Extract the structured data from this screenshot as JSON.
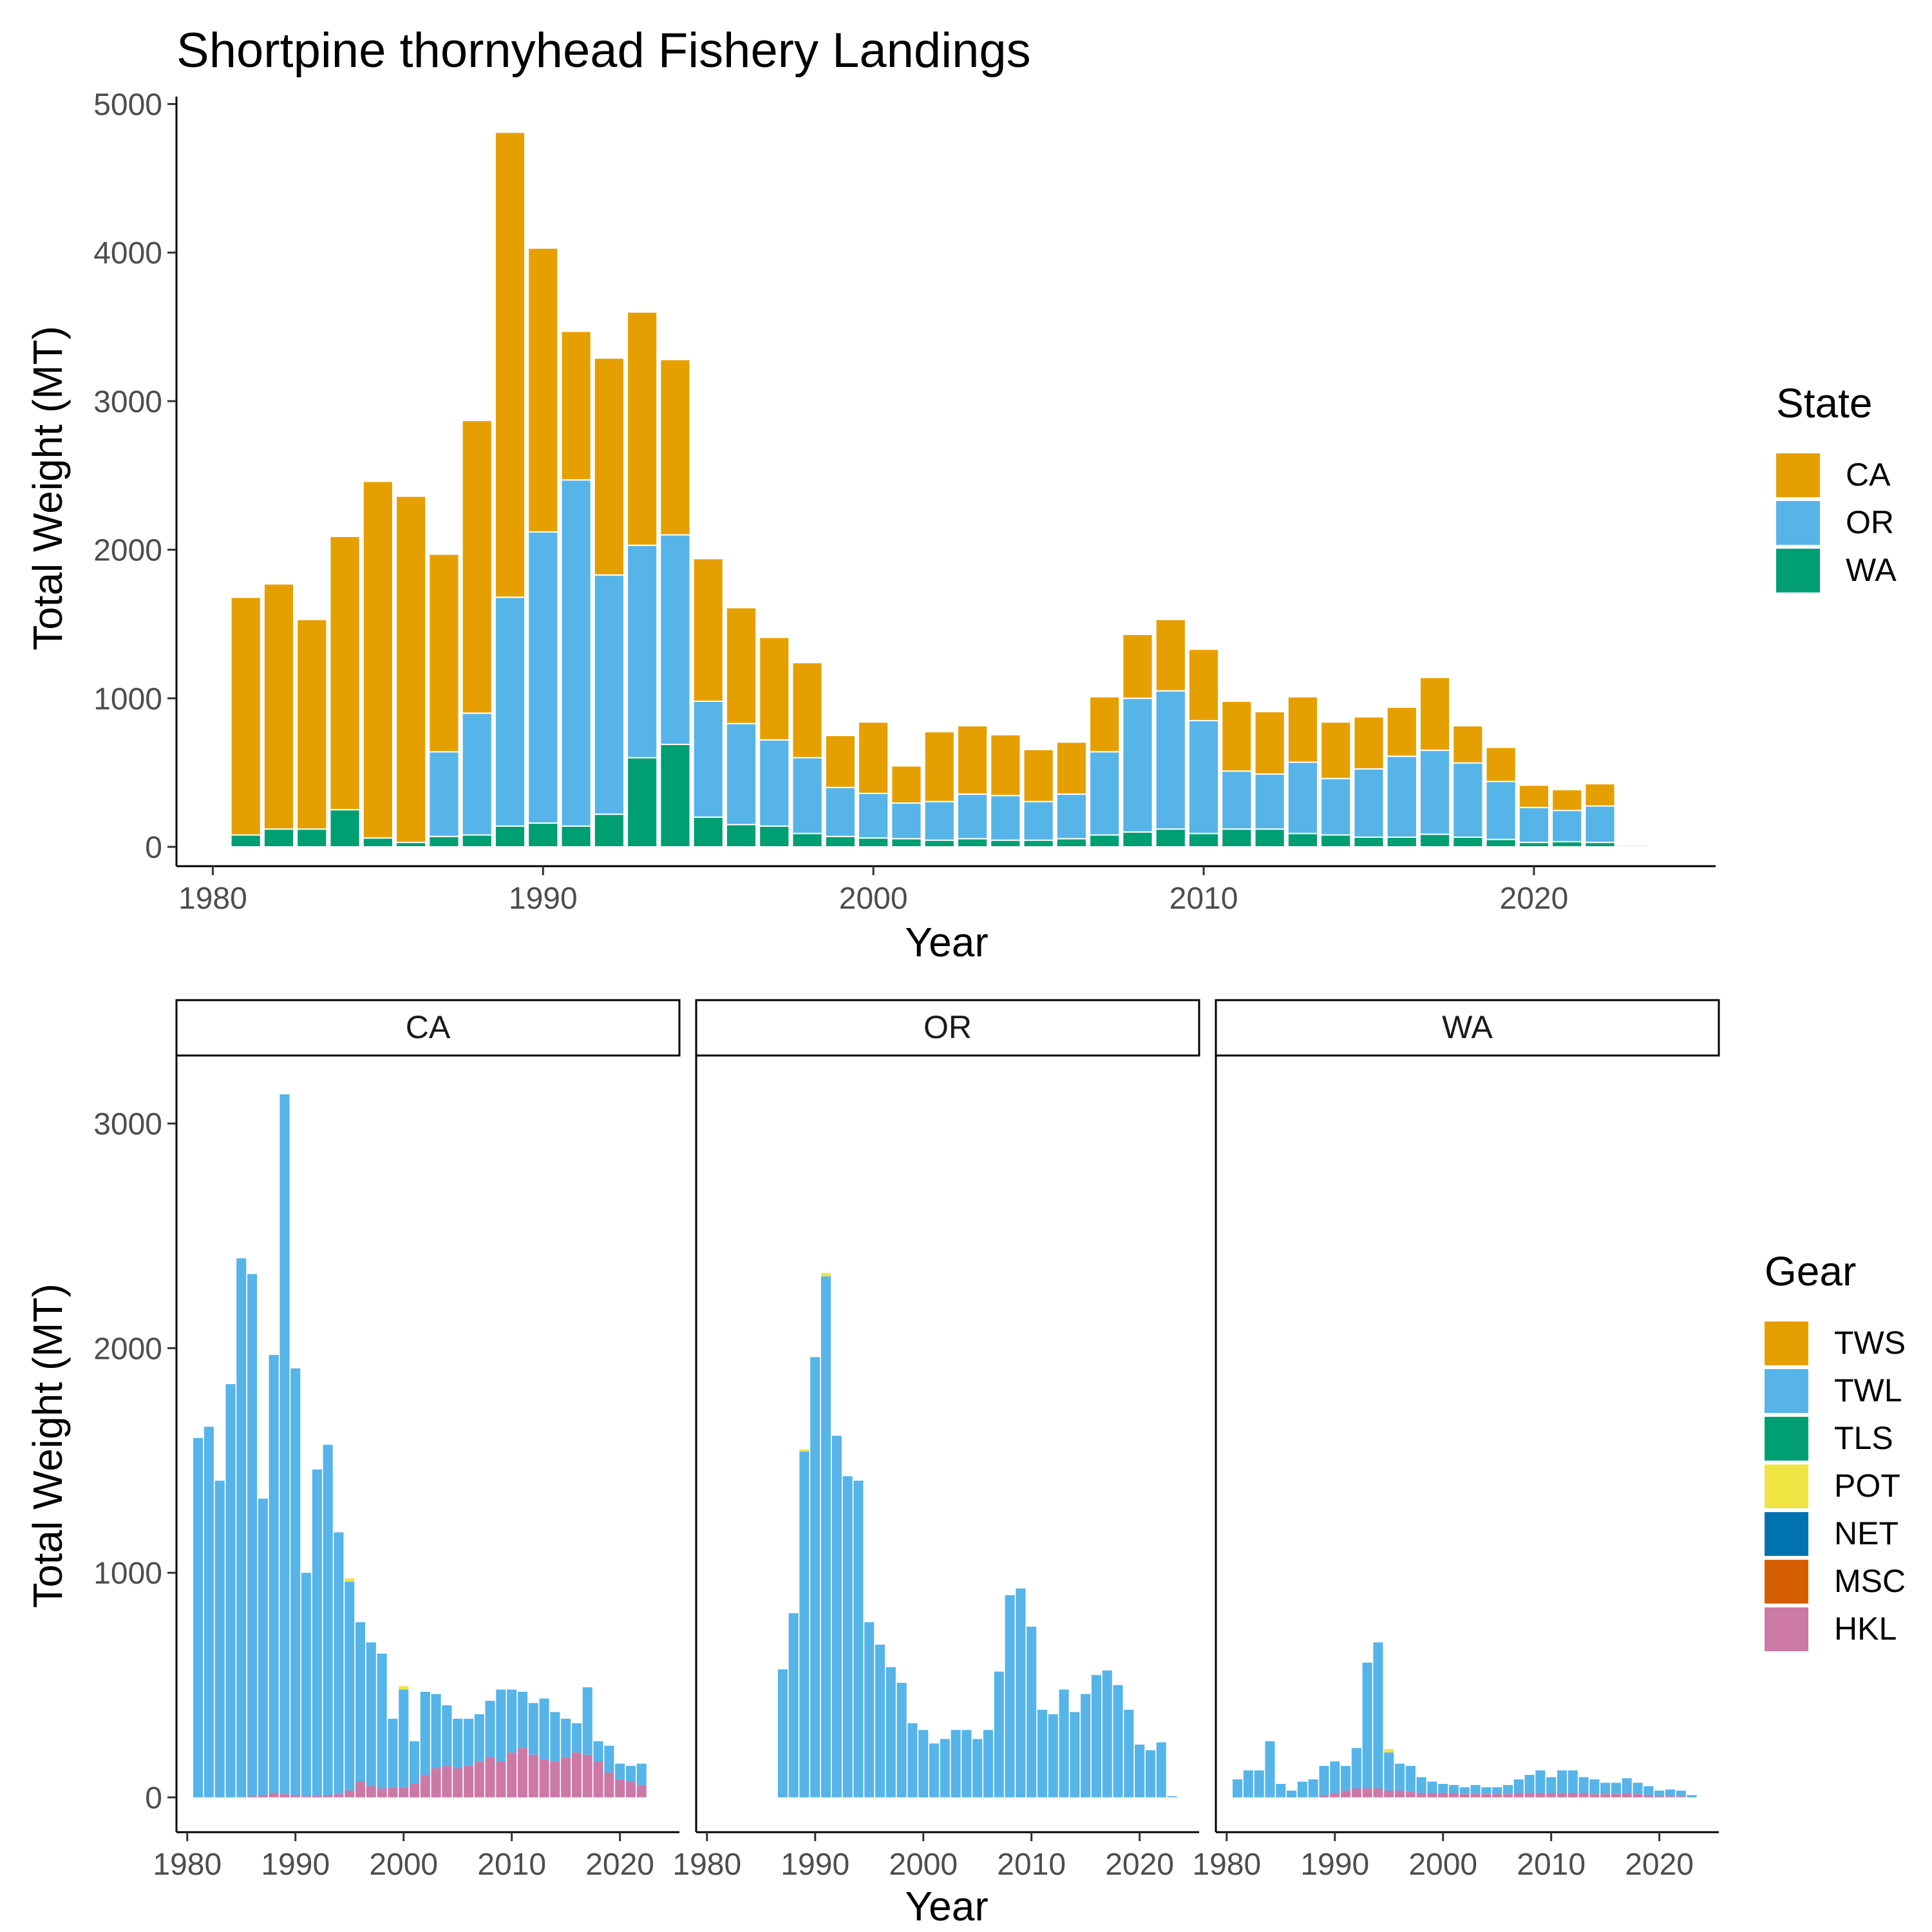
{
  "title": "Shortpine thornyhead Fishery Landings",
  "colors": {
    "CA": "#E69F00",
    "OR": "#56B4E9",
    "WA": "#009E73",
    "TWS": "#E69F00",
    "TWL": "#56B4E9",
    "TLS": "#009E73",
    "POT": "#F0E442",
    "NET": "#0072B2",
    "MSC": "#D55E00",
    "HKL": "#CC79A7"
  },
  "chart_data": [
    {
      "type": "bar",
      "stacked": true,
      "title": "Shortpine thornyhead Fishery Landings",
      "xlabel": "Year",
      "ylabel": "Total Weight (MT)",
      "xlim": [
        1978.9,
        2025.5
      ],
      "ylim": [
        -130,
        5050
      ],
      "xticks": [
        1980,
        1990,
        2000,
        2010,
        2020
      ],
      "yticks": [
        0,
        1000,
        2000,
        3000,
        4000,
        5000
      ],
      "legend": {
        "title": "State",
        "entries": [
          "CA",
          "OR",
          "WA"
        ],
        "position": "right"
      },
      "x": [
        1981,
        1982,
        1983,
        1984,
        1985,
        1986,
        1987,
        1988,
        1989,
        1990,
        1991,
        1992,
        1993,
        1994,
        1995,
        1996,
        1997,
        1998,
        1999,
        2000,
        2001,
        2002,
        2003,
        2004,
        2005,
        2006,
        2007,
        2008,
        2009,
        2010,
        2011,
        2012,
        2013,
        2014,
        2015,
        2016,
        2017,
        2018,
        2019,
        2020,
        2021,
        2022,
        2023
      ],
      "series": [
        {
          "name": "WA",
          "values": [
            80,
            120,
            120,
            250,
            60,
            30,
            70,
            80,
            140,
            160,
            140,
            220,
            600,
            690,
            200,
            150,
            140,
            90,
            70,
            60,
            55,
            45,
            55,
            45,
            45,
            55,
            80,
            100,
            120,
            90,
            120,
            120,
            90,
            80,
            65,
            65,
            85,
            65,
            50,
            30,
            35,
            30,
            10
          ]
        },
        {
          "name": "OR",
          "values": [
            0,
            0,
            0,
            0,
            0,
            0,
            570,
            820,
            1540,
            1960,
            2330,
            1610,
            1430,
            1410,
            780,
            680,
            580,
            510,
            330,
            300,
            240,
            260,
            300,
            300,
            260,
            300,
            560,
            900,
            930,
            760,
            390,
            370,
            480,
            380,
            460,
            545,
            565,
            500,
            390,
            235,
            210,
            245,
            5
          ]
        },
        {
          "name": "CA",
          "values": [
            1600,
            1650,
            1410,
            1840,
            2400,
            2330,
            1330,
            1970,
            3130,
            1910,
            1000,
            1460,
            1570,
            1180,
            960,
            780,
            690,
            640,
            350,
            480,
            250,
            470,
            460,
            410,
            350,
            350,
            370,
            430,
            480,
            480,
            470,
            420,
            440,
            380,
            350,
            330,
            490,
            250,
            230,
            150,
            140,
            150,
            0
          ]
        }
      ]
    },
    {
      "type": "bar",
      "stacked": true,
      "facet": "CA",
      "xlabel": "Year",
      "ylabel": "Total Weight (MT)",
      "xlim": [
        1979,
        2025.5
      ],
      "ylim": [
        -155,
        3300
      ],
      "xticks": [
        1980,
        1990,
        2000,
        2010,
        2020
      ],
      "yticks": [
        0,
        1000,
        2000,
        3000
      ],
      "x": [
        1981,
        1982,
        1983,
        1984,
        1985,
        1986,
        1987,
        1988,
        1989,
        1990,
        1991,
        1992,
        1993,
        1994,
        1995,
        1996,
        1997,
        1998,
        1999,
        2000,
        2001,
        2002,
        2003,
        2004,
        2005,
        2006,
        2007,
        2008,
        2009,
        2010,
        2011,
        2012,
        2013,
        2014,
        2015,
        2016,
        2017,
        2018,
        2019,
        2020,
        2021,
        2022,
        2023
      ],
      "series": [
        {
          "name": "HKL",
          "values": [
            0,
            0,
            0,
            0,
            0,
            5,
            10,
            20,
            15,
            10,
            5,
            8,
            10,
            15,
            30,
            70,
            50,
            40,
            45,
            45,
            60,
            100,
            130,
            140,
            130,
            140,
            160,
            180,
            160,
            200,
            220,
            190,
            170,
            160,
            180,
            200,
            190,
            160,
            110,
            80,
            70,
            55,
            0
          ]
        },
        {
          "name": "TWL",
          "values": [
            1600,
            1650,
            1410,
            1840,
            2400,
            2325,
            1320,
            1950,
            3115,
            1900,
            995,
            1452,
            1560,
            1165,
            930,
            710,
            640,
            600,
            305,
            435,
            190,
            370,
            330,
            270,
            220,
            210,
            210,
            250,
            320,
            280,
            250,
            230,
            270,
            220,
            170,
            130,
            300,
            90,
            120,
            70,
            70,
            95,
            0
          ]
        },
        {
          "name": "POT",
          "values": [
            0,
            0,
            0,
            0,
            0,
            0,
            0,
            0,
            0,
            0,
            0,
            0,
            0,
            0,
            15,
            0,
            0,
            0,
            0,
            15,
            0,
            0,
            0,
            0,
            0,
            0,
            0,
            0,
            0,
            0,
            0,
            0,
            0,
            0,
            0,
            0,
            0,
            0,
            0,
            0,
            0,
            0,
            0
          ]
        }
      ]
    },
    {
      "type": "bar",
      "stacked": true,
      "facet": "OR",
      "xlabel": "Year",
      "ylabel": "",
      "xlim": [
        1979,
        2025.5
      ],
      "ylim": [
        -155,
        3300
      ],
      "xticks": [
        1980,
        1990,
        2000,
        2010,
        2020
      ],
      "x": [
        1987,
        1988,
        1989,
        1990,
        1991,
        1992,
        1993,
        1994,
        1995,
        1996,
        1997,
        1998,
        1999,
        2000,
        2001,
        2002,
        2003,
        2004,
        2005,
        2006,
        2007,
        2008,
        2009,
        2010,
        2011,
        2012,
        2013,
        2014,
        2015,
        2016,
        2017,
        2018,
        2019,
        2020,
        2021,
        2022,
        2023
      ],
      "series": [
        {
          "name": "TWL",
          "values": [
            570,
            820,
            1540,
            1960,
            2320,
            1610,
            1430,
            1410,
            780,
            680,
            580,
            510,
            330,
            300,
            240,
            260,
            300,
            300,
            260,
            300,
            560,
            900,
            930,
            760,
            390,
            370,
            480,
            380,
            460,
            545,
            565,
            500,
            390,
            235,
            210,
            245,
            5
          ]
        },
        {
          "name": "POT",
          "values": [
            0,
            0,
            10,
            0,
            15,
            0,
            0,
            0,
            0,
            0,
            0,
            0,
            0,
            0,
            0,
            0,
            0,
            0,
            0,
            0,
            0,
            0,
            0,
            0,
            0,
            0,
            0,
            0,
            0,
            0,
            0,
            0,
            0,
            0,
            0,
            0,
            0
          ]
        }
      ]
    },
    {
      "type": "bar",
      "stacked": true,
      "facet": "WA",
      "xlabel": "Year",
      "ylabel": "",
      "xlim": [
        1979,
        2025.5
      ],
      "ylim": [
        -155,
        3300
      ],
      "xticks": [
        1980,
        1990,
        2000,
        2010,
        2020
      ],
      "x": [
        1981,
        1982,
        1983,
        1984,
        1985,
        1986,
        1987,
        1988,
        1989,
        1990,
        1991,
        1992,
        1993,
        1994,
        1995,
        1996,
        1997,
        1998,
        1999,
        2000,
        2001,
        2002,
        2003,
        2004,
        2005,
        2006,
        2007,
        2008,
        2009,
        2010,
        2011,
        2012,
        2013,
        2014,
        2015,
        2016,
        2017,
        2018,
        2019,
        2020,
        2021,
        2022,
        2023
      ],
      "series": [
        {
          "name": "HKL",
          "values": [
            0,
            0,
            0,
            0,
            0,
            0,
            0,
            0,
            10,
            20,
            30,
            40,
            40,
            40,
            30,
            30,
            25,
            20,
            20,
            20,
            20,
            15,
            15,
            15,
            15,
            15,
            20,
            20,
            20,
            20,
            20,
            20,
            20,
            15,
            15,
            15,
            20,
            15,
            10,
            5,
            5,
            5,
            0
          ]
        },
        {
          "name": "TWL",
          "values": [
            80,
            120,
            120,
            250,
            60,
            30,
            70,
            80,
            130,
            140,
            110,
            180,
            560,
            650,
            170,
            120,
            115,
            70,
            50,
            40,
            35,
            30,
            40,
            30,
            30,
            40,
            60,
            80,
            100,
            70,
            100,
            100,
            70,
            65,
            50,
            50,
            65,
            50,
            40,
            25,
            30,
            25,
            10
          ]
        },
        {
          "name": "POT",
          "values": [
            0,
            0,
            0,
            0,
            0,
            0,
            0,
            0,
            0,
            0,
            0,
            0,
            0,
            0,
            15,
            0,
            0,
            0,
            0,
            0,
            0,
            0,
            0,
            0,
            0,
            0,
            0,
            0,
            0,
            0,
            0,
            0,
            0,
            0,
            0,
            0,
            0,
            0,
            0,
            0,
            0,
            0,
            0
          ]
        }
      ],
      "legend": {
        "title": "Gear",
        "entries": [
          "TWS",
          "TWL",
          "TLS",
          "POT",
          "NET",
          "MSC",
          "HKL"
        ],
        "position": "right"
      }
    }
  ]
}
